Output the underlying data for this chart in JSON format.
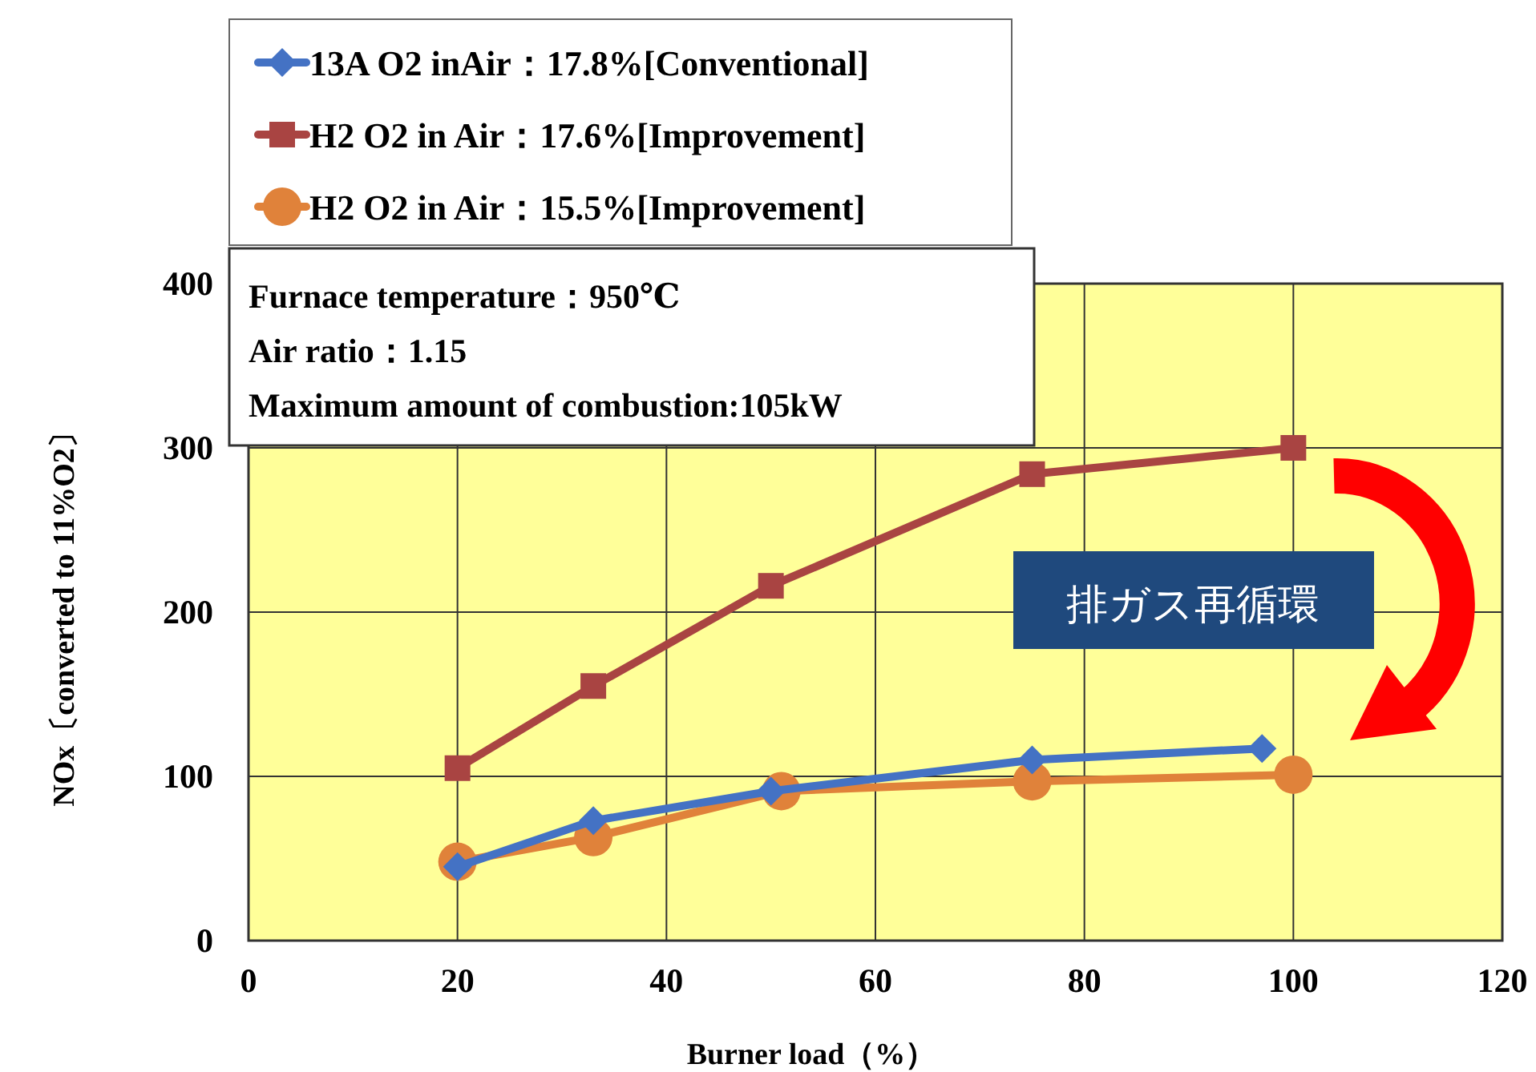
{
  "chart_data": {
    "type": "line",
    "xlabel": "Burner load（%）",
    "ylabel": "NOx〔converted to 11%O2〕",
    "xlim": [
      0,
      120
    ],
    "xticks": [
      0,
      20,
      40,
      60,
      80,
      100,
      120
    ],
    "ylim": [
      0,
      400
    ],
    "yticks": [
      0,
      100,
      200,
      300,
      400
    ],
    "grid": true,
    "legend": "top left",
    "series": [
      {
        "name": "13A O2 inAir：17.8%[Conventional]",
        "color": "#4472c4",
        "marker": "diamond",
        "x": [
          20,
          33,
          50,
          75,
          97
        ],
        "values": [
          45,
          73,
          91,
          110,
          117
        ]
      },
      {
        "name": "H2 O2 in Air：17.6%[Improvement]",
        "color": "#a94442",
        "marker": "square",
        "x": [
          20,
          33,
          50,
          75,
          100
        ],
        "values": [
          105,
          155,
          216,
          284,
          300
        ]
      },
      {
        "name": " H2 O2 in Air：15.5%[Improvement]",
        "color": "#e0823a",
        "marker": "circle",
        "x": [
          20,
          33,
          51,
          75,
          100
        ],
        "values": [
          48,
          63,
          91,
          97,
          101
        ]
      }
    ],
    "annotations": [
      "Furnace temperature：950℃",
      "Air ratio：1.15",
      "Maximum amount of combustion:105kW",
      "排ガス再循環"
    ]
  }
}
